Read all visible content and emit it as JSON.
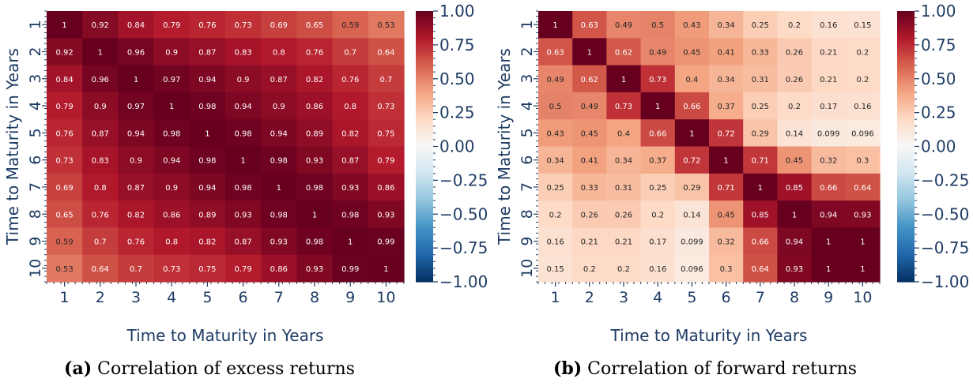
{
  "chart_data": [
    {
      "type": "heatmap",
      "caption_tag": "(a)",
      "caption": "Correlation of excess returns",
      "xlabel": "Time to Maturity in Years",
      "ylabel": "Time to Maturity in Years",
      "x_ticks": [
        "1",
        "2",
        "3",
        "4",
        "5",
        "6",
        "7",
        "8",
        "9",
        "10"
      ],
      "y_ticks": [
        "1",
        "2",
        "3",
        "4",
        "5",
        "6",
        "7",
        "8",
        "9",
        "10"
      ],
      "colorbar": {
        "vmin": -1.0,
        "vmax": 1.0,
        "colormap": "RdBu_r",
        "ticks": [
          "1.00",
          "0.75",
          "0.50",
          "0.25",
          "0.00",
          "−0.25",
          "−0.50",
          "−0.75",
          "−1.00"
        ]
      },
      "values": [
        [
          1,
          0.92,
          0.84,
          0.79,
          0.76,
          0.73,
          0.69,
          0.65,
          0.59,
          0.53
        ],
        [
          0.92,
          1,
          0.96,
          0.9,
          0.87,
          0.83,
          0.8,
          0.76,
          0.7,
          0.64
        ],
        [
          0.84,
          0.96,
          1,
          0.97,
          0.94,
          0.9,
          0.87,
          0.82,
          0.76,
          0.7
        ],
        [
          0.79,
          0.9,
          0.97,
          1,
          0.98,
          0.94,
          0.9,
          0.86,
          0.8,
          0.73
        ],
        [
          0.76,
          0.87,
          0.94,
          0.98,
          1,
          0.98,
          0.94,
          0.89,
          0.82,
          0.75
        ],
        [
          0.73,
          0.83,
          0.9,
          0.94,
          0.98,
          1,
          0.98,
          0.93,
          0.87,
          0.79
        ],
        [
          0.69,
          0.8,
          0.87,
          0.9,
          0.94,
          0.98,
          1,
          0.98,
          0.93,
          0.86
        ],
        [
          0.65,
          0.76,
          0.82,
          0.86,
          0.89,
          0.93,
          0.98,
          1,
          0.98,
          0.93
        ],
        [
          0.59,
          0.7,
          0.76,
          0.8,
          0.82,
          0.87,
          0.93,
          0.98,
          1,
          0.99
        ],
        [
          0.53,
          0.64,
          0.7,
          0.73,
          0.75,
          0.79,
          0.86,
          0.93,
          0.99,
          1
        ]
      ]
    },
    {
      "type": "heatmap",
      "caption_tag": "(b)",
      "caption": "Correlation of forward returns",
      "xlabel": "Time to Maturity in Years",
      "ylabel": "Time to Maturity in Years",
      "x_ticks": [
        "1",
        "2",
        "3",
        "4",
        "5",
        "6",
        "7",
        "8",
        "9",
        "10"
      ],
      "y_ticks": [
        "1",
        "2",
        "3",
        "4",
        "5",
        "6",
        "7",
        "8",
        "9",
        "10"
      ],
      "colorbar": {
        "vmin": -1.0,
        "vmax": 1.0,
        "colormap": "RdBu_r",
        "ticks": [
          "1.00",
          "0.75",
          "0.50",
          "0.25",
          "0.00",
          "−0.25",
          "−0.50",
          "−0.75",
          "−1.00"
        ]
      },
      "values": [
        [
          1,
          0.63,
          0.49,
          0.5,
          0.43,
          0.34,
          0.25,
          0.2,
          0.16,
          0.15
        ],
        [
          0.63,
          1,
          0.62,
          0.49,
          0.45,
          0.41,
          0.33,
          0.26,
          0.21,
          0.2
        ],
        [
          0.49,
          0.62,
          1,
          0.73,
          0.4,
          0.34,
          0.31,
          0.26,
          0.21,
          0.2
        ],
        [
          0.5,
          0.49,
          0.73,
          1,
          0.66,
          0.37,
          0.25,
          0.2,
          0.17,
          0.16
        ],
        [
          0.43,
          0.45,
          0.4,
          0.66,
          1,
          0.72,
          0.29,
          0.14,
          0.099,
          0.096
        ],
        [
          0.34,
          0.41,
          0.34,
          0.37,
          0.72,
          1,
          0.71,
          0.45,
          0.32,
          0.3
        ],
        [
          0.25,
          0.33,
          0.31,
          0.25,
          0.29,
          0.71,
          1,
          0.85,
          0.66,
          0.64
        ],
        [
          0.2,
          0.26,
          0.26,
          0.2,
          0.14,
          0.45,
          0.85,
          1,
          0.94,
          0.93
        ],
        [
          0.16,
          0.21,
          0.21,
          0.17,
          0.099,
          0.32,
          0.66,
          0.94,
          1,
          1
        ],
        [
          0.15,
          0.2,
          0.2,
          0.16,
          0.096,
          0.3,
          0.64,
          0.93,
          1,
          1
        ]
      ]
    }
  ]
}
